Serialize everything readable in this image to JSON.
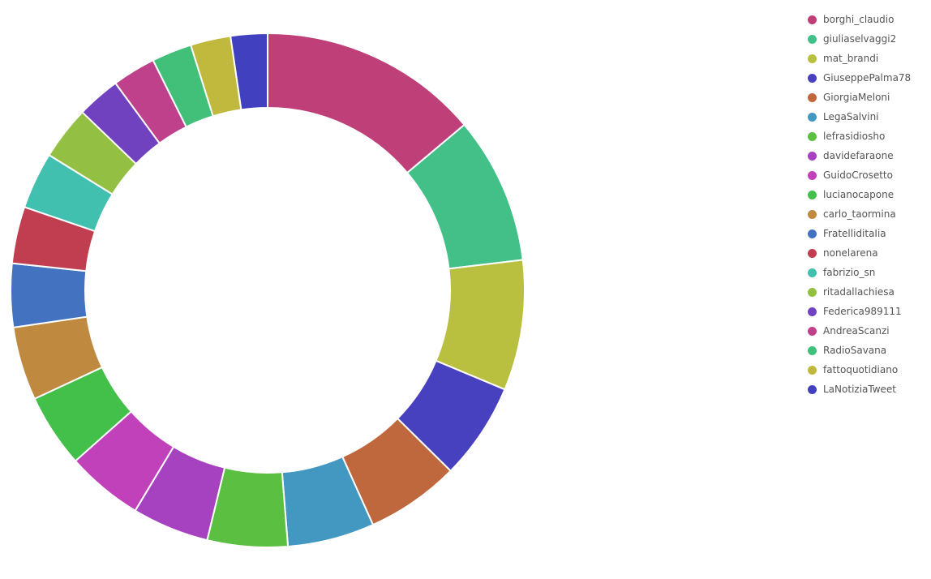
{
  "chart_data": {
    "type": "pie",
    "style": "donut",
    "legend_position": "right",
    "series": [
      {
        "name": "borghi_claudio",
        "value": 66,
        "color": "#bf3f78"
      },
      {
        "name": "giuliaselvaggi2",
        "value": 44,
        "color": "#42c087"
      },
      {
        "name": "mat_brandi",
        "value": 39,
        "color": "#b9bf3f"
      },
      {
        "name": "GiuseppePalma78",
        "value": 29,
        "color": "#4741c0"
      },
      {
        "name": "GiorgiaMeloni",
        "value": 28,
        "color": "#c0683d"
      },
      {
        "name": "LegaSalvini",
        "value": 26,
        "color": "#4298c0"
      },
      {
        "name": "lefrasidiosho",
        "value": 24,
        "color": "#5bc042"
      },
      {
        "name": "davidefaraone",
        "value": 23,
        "color": "#a641c0"
      },
      {
        "name": "GuidoCrosetto",
        "value": 23,
        "color": "#c041b9"
      },
      {
        "name": "lucianocapone",
        "value": 22,
        "color": "#42c04a"
      },
      {
        "name": "carlo_taormina",
        "value": 22,
        "color": "#bf893f"
      },
      {
        "name": "FratelliditaIia",
        "value": 19,
        "color": "#4272c0"
      },
      {
        "name": "nonelarena",
        "value": 17,
        "color": "#c03e4f"
      },
      {
        "name": "fabrizio_sn",
        "value": 17,
        "color": "#42c0af"
      },
      {
        "name": "ritadallachiesa",
        "value": 16,
        "color": "#93c042"
      },
      {
        "name": "Federica989111",
        "value": 13,
        "color": "#7042c0"
      },
      {
        "name": "AndreaScanzi",
        "value": 13,
        "color": "#c0418b"
      },
      {
        "name": "RadioSavana",
        "value": 12,
        "color": "#42c07a"
      },
      {
        "name": "fattoquotidiano",
        "value": 12,
        "color": "#c0b93e"
      },
      {
        "name": "LaNotiziaTweet",
        "value": 11,
        "color": "#4141c0"
      }
    ]
  }
}
